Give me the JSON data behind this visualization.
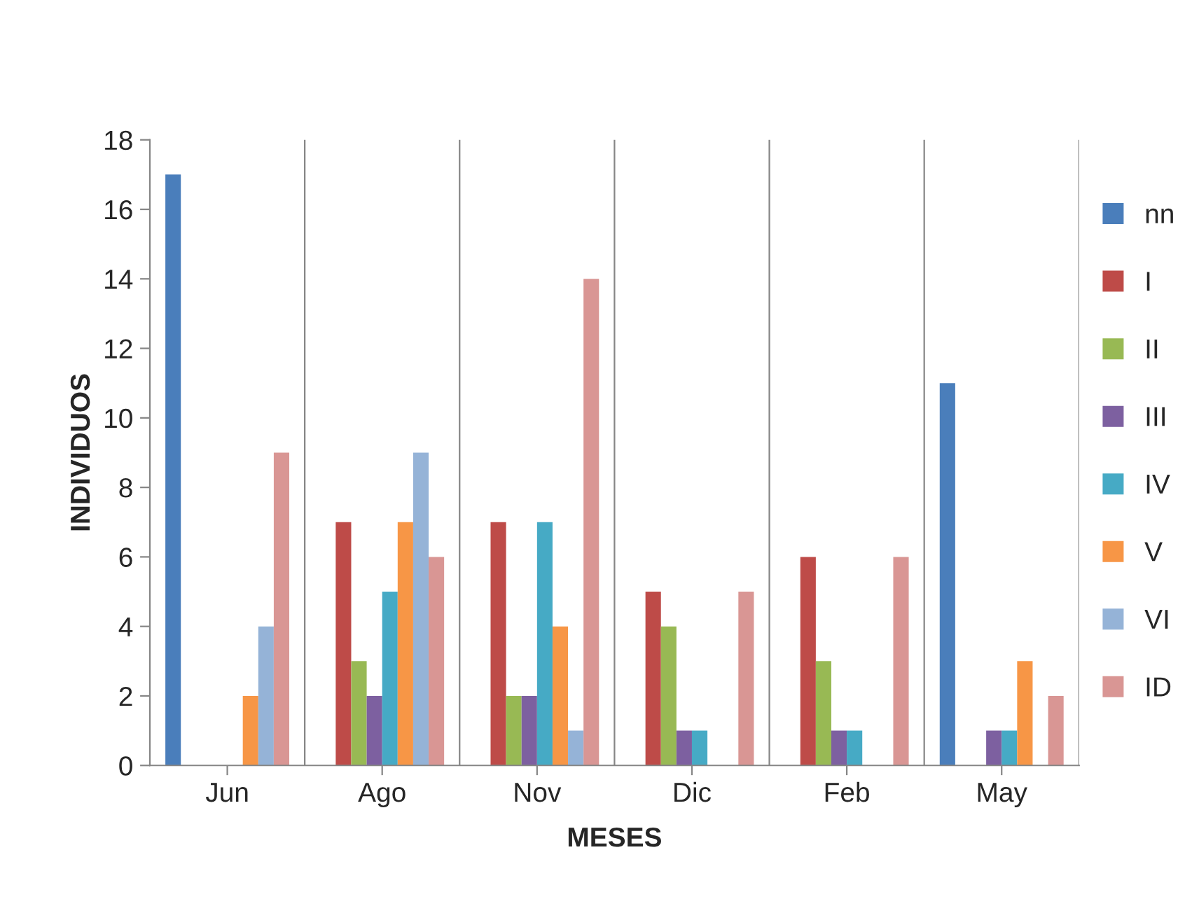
{
  "chart_data": {
    "type": "bar",
    "xlabel": "MESES",
    "ylabel": "INDIVIDUOS",
    "categories": [
      "Jun",
      "Ago",
      "Nov",
      "Dic",
      "Feb",
      "May"
    ],
    "series": [
      {
        "name": "nn",
        "color": "#4a7ebb",
        "values": [
          17,
          0,
          0,
          0,
          0,
          11
        ]
      },
      {
        "name": "I",
        "color": "#be4b48",
        "values": [
          0,
          7,
          7,
          5,
          6,
          0
        ]
      },
      {
        "name": "II",
        "color": "#98b954",
        "values": [
          0,
          3,
          2,
          4,
          3,
          0
        ]
      },
      {
        "name": "III",
        "color": "#7d60a0",
        "values": [
          0,
          2,
          2,
          1,
          1,
          1
        ]
      },
      {
        "name": "IV",
        "color": "#46aac5",
        "values": [
          0,
          5,
          7,
          1,
          1,
          1
        ]
      },
      {
        "name": "V",
        "color": "#f79646",
        "values": [
          2,
          7,
          4,
          0,
          0,
          3
        ]
      },
      {
        "name": "VI",
        "color": "#95b3d7",
        "values": [
          4,
          9,
          1,
          0,
          0,
          0
        ]
      },
      {
        "name": "ID",
        "color": "#d99694",
        "values": [
          9,
          6,
          14,
          5,
          6,
          2
        ]
      }
    ],
    "ylim": [
      0,
      18
    ],
    "yticks": [
      0,
      2,
      4,
      6,
      8,
      10,
      12,
      14,
      16,
      18
    ],
    "grid": "x",
    "legend": "right"
  }
}
